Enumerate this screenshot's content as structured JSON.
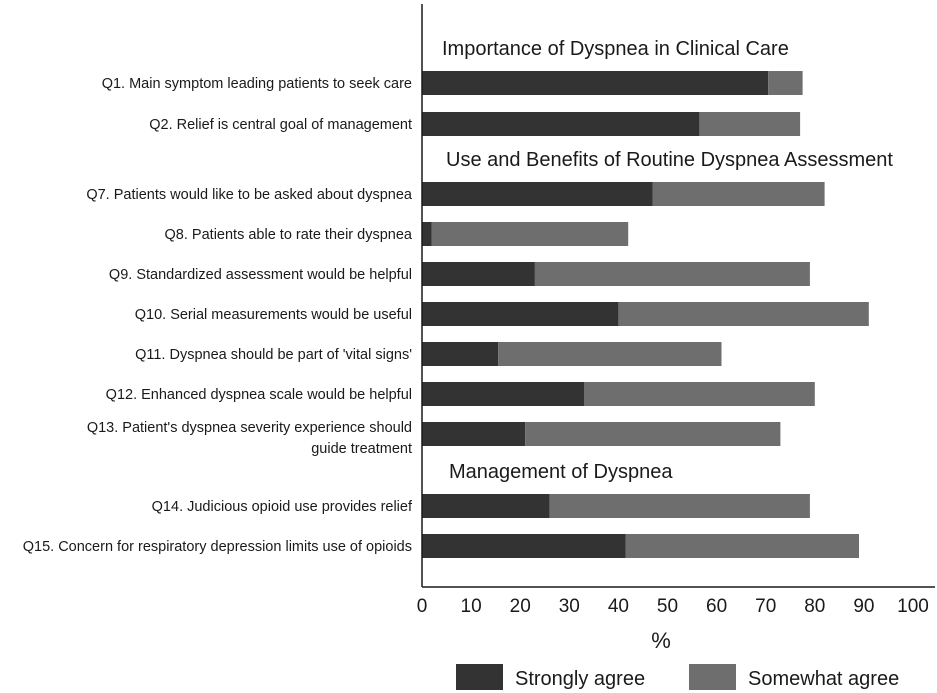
{
  "chart_data": {
    "type": "bar",
    "orientation": "horizontal",
    "stacked": true,
    "xlabel": "%",
    "xlim": [
      0,
      100
    ],
    "xticks": [
      "0",
      "10",
      "20",
      "30",
      "40",
      "50",
      "60",
      "70",
      "80",
      "90",
      "100"
    ],
    "grid": false,
    "legend_position": "bottom",
    "groups": [
      {
        "title": "Importance of Dyspnea in Clinical Care",
        "rows": [
          {
            "label": [
              "Q1. Main symptom leading patients to seek care"
            ],
            "strongly": 70.5,
            "somewhat": 7
          },
          {
            "label": [
              "Q2. Relief is central goal of management"
            ],
            "strongly": 56.5,
            "somewhat": 20.5
          }
        ]
      },
      {
        "title": "Use and Benefits of Routine Dyspnea Assessment",
        "rows": [
          {
            "label": [
              "Q7. Patients would like to be asked about dyspnea"
            ],
            "strongly": 47,
            "somewhat": 35
          },
          {
            "label": [
              "Q8. Patients able to rate their dyspnea"
            ],
            "strongly": 2,
            "somewhat": 40
          },
          {
            "label": [
              "Q9. Standardized assessment would be helpful"
            ],
            "strongly": 23,
            "somewhat": 56
          },
          {
            "label": [
              "Q10. Serial measurements would be useful"
            ],
            "strongly": 40,
            "somewhat": 51
          },
          {
            "label": [
              "Q11. Dyspnea should be part of 'vital signs'"
            ],
            "strongly": 15.5,
            "somewhat": 45.5
          },
          {
            "label": [
              "Q12. Enhanced dyspnea scale would be helpful"
            ],
            "strongly": 33,
            "somewhat": 47
          },
          {
            "label": [
              "Q13. Patient's dyspnea severity experience should",
              "guide treatment"
            ],
            "strongly": 21,
            "somewhat": 52
          }
        ]
      },
      {
        "title": "Management of Dyspnea",
        "rows": [
          {
            "label": [
              "Q14. Judicious opioid use provides relief"
            ],
            "strongly": 26,
            "somewhat": 53
          },
          {
            "label": [
              "Q15. Concern for respiratory depression limits use of opioids"
            ],
            "strongly": 41.5,
            "somewhat": 47.5
          }
        ]
      }
    ],
    "series": [
      {
        "name": "Strongly agree",
        "key": "strongly",
        "color": "#333333"
      },
      {
        "name": "Somewhat agree",
        "key": "somewhat",
        "color": "#6e6e6e"
      }
    ]
  }
}
